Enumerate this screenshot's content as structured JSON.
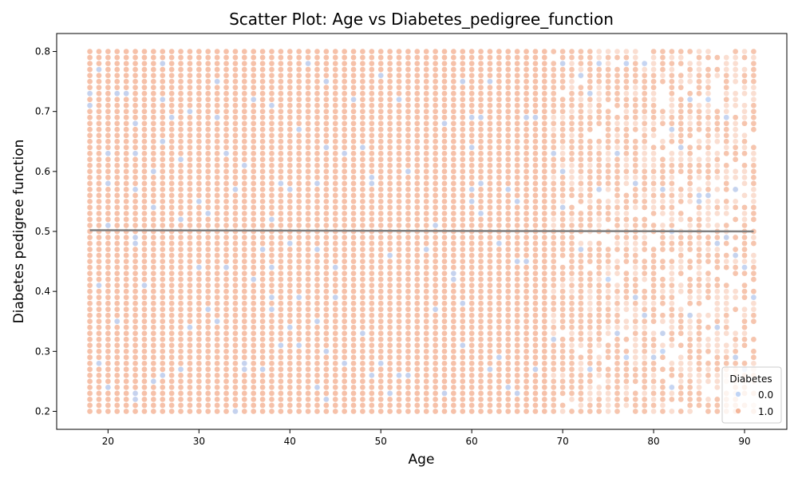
{
  "chart_data": {
    "type": "scatter",
    "title": "Scatter Plot: Age vs Diabetes_pedigree_function",
    "xlabel": "Age",
    "ylabel": "Diabetes pedigree function",
    "xlim": [
      14.35,
      94.65
    ],
    "ylim": [
      0.17,
      0.83
    ],
    "x_ticks": [
      20,
      30,
      40,
      50,
      60,
      70,
      80,
      90
    ],
    "y_ticks": [
      0.2,
      0.3,
      0.4,
      0.5,
      0.6,
      0.7,
      0.8
    ],
    "x_tick_labels": [
      "20",
      "30",
      "40",
      "50",
      "60",
      "70",
      "80",
      "90"
    ],
    "y_tick_labels": [
      "0.2",
      "0.3",
      "0.4",
      "0.5",
      "0.6",
      "0.7",
      "0.8"
    ],
    "grid": false,
    "x_range": [
      18,
      91
    ],
    "x_step": 1,
    "y_range": [
      0.2,
      0.8
    ],
    "y_step": 0.01,
    "legend": {
      "title": "Diabetes",
      "position": "lower-right",
      "entries": [
        {
          "label": "0.0",
          "color": "#c0d4f5"
        },
        {
          "label": "1.0",
          "color": "#f4b69a"
        }
      ]
    },
    "series": [
      {
        "name": "1.0",
        "color": "#f4b69a",
        "description": "dense grid: every integer age 18-91, every 0.01 step 0.20-0.80"
      },
      {
        "name": "0.0",
        "color": "#c0d4f5",
        "points": [
          [
            18,
            0.71
          ],
          [
            18,
            0.73
          ],
          [
            19,
            0.77
          ],
          [
            19,
            0.41
          ],
          [
            19,
            0.28
          ],
          [
            20,
            0.63
          ],
          [
            20,
            0.58
          ],
          [
            20,
            0.51
          ],
          [
            20,
            0.24
          ],
          [
            21,
            0.73
          ],
          [
            21,
            0.35
          ],
          [
            22,
            0.73
          ],
          [
            23,
            0.68
          ],
          [
            23,
            0.63
          ],
          [
            23,
            0.57
          ],
          [
            23,
            0.49
          ],
          [
            23,
            0.48
          ],
          [
            23,
            0.23
          ],
          [
            23,
            0.22
          ],
          [
            24,
            0.41
          ],
          [
            25,
            0.6
          ],
          [
            25,
            0.54
          ],
          [
            25,
            0.25
          ],
          [
            26,
            0.78
          ],
          [
            26,
            0.72
          ],
          [
            26,
            0.65
          ],
          [
            26,
            0.26
          ],
          [
            27,
            0.69
          ],
          [
            28,
            0.62
          ],
          [
            28,
            0.52
          ],
          [
            28,
            0.27
          ],
          [
            29,
            0.7
          ],
          [
            29,
            0.34
          ],
          [
            30,
            0.55
          ],
          [
            30,
            0.44
          ],
          [
            31,
            0.53
          ],
          [
            31,
            0.37
          ],
          [
            32,
            0.75
          ],
          [
            32,
            0.69
          ],
          [
            32,
            0.35
          ],
          [
            33,
            0.63
          ],
          [
            33,
            0.44
          ],
          [
            34,
            0.57
          ],
          [
            34,
            0.2
          ],
          [
            35,
            0.61
          ],
          [
            35,
            0.28
          ],
          [
            35,
            0.27
          ],
          [
            36,
            0.72
          ],
          [
            36,
            0.42
          ],
          [
            37,
            0.47
          ],
          [
            37,
            0.27
          ],
          [
            38,
            0.71
          ],
          [
            38,
            0.52
          ],
          [
            38,
            0.44
          ],
          [
            38,
            0.39
          ],
          [
            38,
            0.37
          ],
          [
            39,
            0.58
          ],
          [
            39,
            0.31
          ],
          [
            40,
            0.57
          ],
          [
            40,
            0.48
          ],
          [
            40,
            0.34
          ],
          [
            41,
            0.67
          ],
          [
            41,
            0.39
          ],
          [
            41,
            0.31
          ],
          [
            42,
            0.78
          ],
          [
            43,
            0.58
          ],
          [
            43,
            0.47
          ],
          [
            43,
            0.35
          ],
          [
            43,
            0.24
          ],
          [
            44,
            0.75
          ],
          [
            44,
            0.64
          ],
          [
            44,
            0.3
          ],
          [
            44,
            0.22
          ],
          [
            45,
            0.44
          ],
          [
            45,
            0.39
          ],
          [
            46,
            0.63
          ],
          [
            46,
            0.28
          ],
          [
            47,
            0.72
          ],
          [
            48,
            0.64
          ],
          [
            48,
            0.33
          ],
          [
            49,
            0.59
          ],
          [
            49,
            0.58
          ],
          [
            49,
            0.26
          ],
          [
            50,
            0.76
          ],
          [
            50,
            0.28
          ],
          [
            51,
            0.46
          ],
          [
            51,
            0.23
          ],
          [
            52,
            0.72
          ],
          [
            52,
            0.26
          ],
          [
            53,
            0.6
          ],
          [
            53,
            0.26
          ],
          [
            55,
            0.47
          ],
          [
            56,
            0.51
          ],
          [
            56,
            0.37
          ],
          [
            57,
            0.68
          ],
          [
            57,
            0.23
          ],
          [
            58,
            0.43
          ],
          [
            58,
            0.42
          ],
          [
            59,
            0.75
          ],
          [
            59,
            0.38
          ],
          [
            59,
            0.31
          ],
          [
            60,
            0.69
          ],
          [
            60,
            0.64
          ],
          [
            60,
            0.57
          ],
          [
            60,
            0.55
          ],
          [
            61,
            0.69
          ],
          [
            61,
            0.58
          ],
          [
            61,
            0.53
          ],
          [
            62,
            0.75
          ],
          [
            62,
            0.27
          ],
          [
            63,
            0.48
          ],
          [
            63,
            0.29
          ],
          [
            64,
            0.57
          ],
          [
            64,
            0.24
          ],
          [
            65,
            0.55
          ],
          [
            65,
            0.45
          ],
          [
            65,
            0.23
          ],
          [
            66,
            0.69
          ],
          [
            66,
            0.45
          ],
          [
            67,
            0.69
          ],
          [
            67,
            0.27
          ],
          [
            69,
            0.63
          ],
          [
            69,
            0.32
          ],
          [
            70,
            0.78
          ],
          [
            70,
            0.6
          ],
          [
            70,
            0.54
          ],
          [
            72,
            0.76
          ],
          [
            72,
            0.47
          ],
          [
            73,
            0.73
          ],
          [
            73,
            0.27
          ],
          [
            74,
            0.78
          ],
          [
            74,
            0.57
          ],
          [
            75,
            0.42
          ],
          [
            76,
            0.63
          ],
          [
            76,
            0.33
          ],
          [
            77,
            0.78
          ],
          [
            77,
            0.29
          ],
          [
            78,
            0.58
          ],
          [
            78,
            0.39
          ],
          [
            79,
            0.78
          ],
          [
            79,
            0.36
          ],
          [
            80,
            0.29
          ],
          [
            81,
            0.57
          ],
          [
            81,
            0.33
          ],
          [
            81,
            0.3
          ],
          [
            82,
            0.67
          ],
          [
            82,
            0.5
          ],
          [
            82,
            0.24
          ],
          [
            83,
            0.64
          ],
          [
            84,
            0.72
          ],
          [
            84,
            0.36
          ],
          [
            85,
            0.56
          ],
          [
            85,
            0.55
          ],
          [
            86,
            0.72
          ],
          [
            86,
            0.56
          ],
          [
            87,
            0.48
          ],
          [
            87,
            0.34
          ],
          [
            88,
            0.69
          ],
          [
            88,
            0.49
          ],
          [
            89,
            0.57
          ],
          [
            89,
            0.46
          ],
          [
            89,
            0.29
          ],
          [
            90,
            0.44
          ],
          [
            90,
            0.27
          ],
          [
            91,
            0.39
          ]
        ]
      }
    ],
    "fit_line": {
      "color": "#808080",
      "x": [
        18,
        91
      ],
      "y": [
        0.502,
        0.5
      ]
    }
  }
}
